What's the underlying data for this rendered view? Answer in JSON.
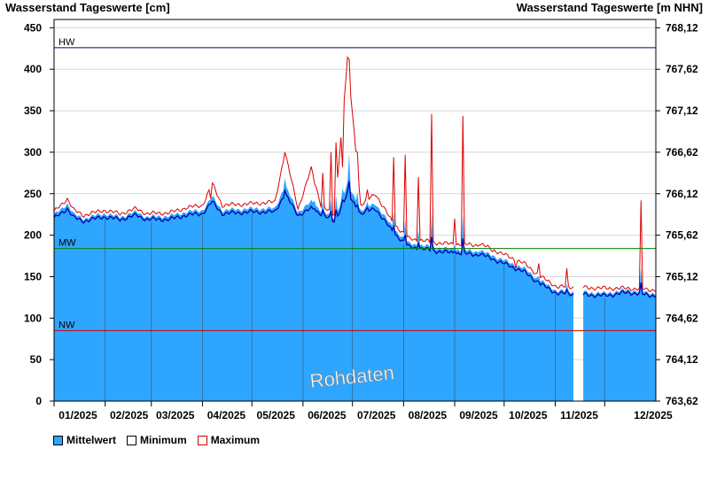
{
  "chart_data": {
    "type": "area",
    "title_left": "Wasserstand Tageswerte [cm]",
    "title_right": "Wasserstand Tageswerte [m NHN]",
    "ylim": [
      0,
      460
    ],
    "yticks_left": [
      "0",
      "50",
      "100",
      "150",
      "200",
      "250",
      "300",
      "350",
      "400",
      "450"
    ],
    "yticks_right": [
      "763,62",
      "764,12",
      "764,62",
      "765,12",
      "765,62",
      "766,12",
      "766,62",
      "767,12",
      "767,62",
      "768,12"
    ],
    "x_labels": [
      "01/2025",
      "02/2025",
      "03/2025",
      "04/2025",
      "05/2025",
      "06/2025",
      "07/2025",
      "08/2025",
      "09/2025",
      "10/2025",
      "11/2025",
      "12/2025"
    ],
    "reference_lines": [
      {
        "label": "HW",
        "value": 426,
        "color": "#00008b"
      },
      {
        "label": "MW",
        "value": 184,
        "color": "#008000"
      },
      {
        "label": "NW",
        "value": 85,
        "color": "#cc0000"
      }
    ],
    "watermark": "Rohdaten",
    "colors": {
      "mean_fill": "#2ea6ff",
      "minimum": "#0000aa",
      "maximum": "#dd0000"
    },
    "gap_days": [
      315,
      321
    ],
    "series": [
      {
        "name": "Mittelwert",
        "points": [
          [
            0,
            224
          ],
          [
            8,
            238
          ],
          [
            12,
            225
          ],
          [
            18,
            220
          ],
          [
            30,
            226
          ],
          [
            40,
            222
          ],
          [
            50,
            228
          ],
          [
            56,
            222
          ],
          [
            70,
            223
          ],
          [
            80,
            228
          ],
          [
            90,
            230
          ],
          [
            96,
            246
          ],
          [
            102,
            230
          ],
          [
            120,
            232
          ],
          [
            134,
            232
          ],
          [
            140,
            260
          ],
          [
            148,
            228
          ],
          [
            156,
            240
          ],
          [
            162,
            230
          ],
          [
            170,
            220
          ],
          [
            178,
            262
          ],
          [
            186,
            230
          ],
          [
            195,
            238
          ],
          [
            205,
            210
          ],
          [
            215,
            190
          ],
          [
            235,
            184
          ],
          [
            260,
            180
          ],
          [
            285,
            160
          ],
          [
            295,
            145
          ],
          [
            305,
            133
          ],
          [
            334,
            130
          ],
          [
            348,
            134
          ],
          [
            364,
            130
          ]
        ]
      },
      {
        "name": "Minimum",
        "points": [
          [
            0,
            220
          ],
          [
            8,
            232
          ],
          [
            12,
            221
          ],
          [
            18,
            217
          ],
          [
            30,
            222
          ],
          [
            40,
            219
          ],
          [
            50,
            224
          ],
          [
            56,
            219
          ],
          [
            70,
            219
          ],
          [
            80,
            224
          ],
          [
            90,
            226
          ],
          [
            96,
            240
          ],
          [
            102,
            226
          ],
          [
            120,
            228
          ],
          [
            134,
            228
          ],
          [
            140,
            250
          ],
          [
            148,
            224
          ],
          [
            156,
            232
          ],
          [
            162,
            226
          ],
          [
            170,
            216
          ],
          [
            178,
            250
          ],
          [
            186,
            226
          ],
          [
            195,
            232
          ],
          [
            205,
            205
          ],
          [
            215,
            186
          ],
          [
            235,
            180
          ],
          [
            260,
            176
          ],
          [
            285,
            156
          ],
          [
            295,
            141
          ],
          [
            305,
            130
          ],
          [
            334,
            127
          ],
          [
            348,
            131
          ],
          [
            364,
            127
          ]
        ]
      },
      {
        "name": "Maximum",
        "points": [
          [
            0,
            228
          ],
          [
            8,
            244
          ],
          [
            12,
            230
          ],
          [
            18,
            224
          ],
          [
            30,
            230
          ],
          [
            40,
            226
          ],
          [
            50,
            232
          ],
          [
            56,
            226
          ],
          [
            70,
            227
          ],
          [
            80,
            233
          ],
          [
            90,
            236
          ],
          [
            96,
            262
          ],
          [
            102,
            236
          ],
          [
            120,
            238
          ],
          [
            134,
            240
          ],
          [
            140,
            300
          ],
          [
            148,
            232
          ],
          [
            156,
            280
          ],
          [
            162,
            236
          ],
          [
            170,
            224
          ],
          [
            178,
            412
          ],
          [
            186,
            236
          ],
          [
            195,
            250
          ],
          [
            205,
            216
          ],
          [
            215,
            196
          ],
          [
            235,
            190
          ],
          [
            260,
            188
          ],
          [
            285,
            166
          ],
          [
            295,
            150
          ],
          [
            305,
            138
          ],
          [
            334,
            136
          ],
          [
            348,
            136
          ],
          [
            364,
            134
          ]
        ]
      }
    ],
    "peaks": [
      [
        95,
        244
      ],
      [
        140,
        300
      ],
      [
        158,
        262
      ],
      [
        163,
        275
      ],
      [
        168,
        300
      ],
      [
        171,
        312
      ],
      [
        175,
        282
      ],
      [
        179,
        412
      ],
      [
        184,
        300
      ],
      [
        190,
        255
      ],
      [
        206,
        294
      ],
      [
        213,
        297
      ],
      [
        221,
        270
      ],
      [
        229,
        346
      ],
      [
        243,
        220
      ],
      [
        248,
        344
      ],
      [
        258,
        188
      ],
      [
        266,
        180
      ],
      [
        280,
        158
      ],
      [
        294,
        166
      ],
      [
        311,
        160
      ],
      [
        356,
        242
      ]
    ]
  },
  "legend": {
    "mean": "Mittelwert",
    "min": "Minimum",
    "max": "Maximum"
  }
}
